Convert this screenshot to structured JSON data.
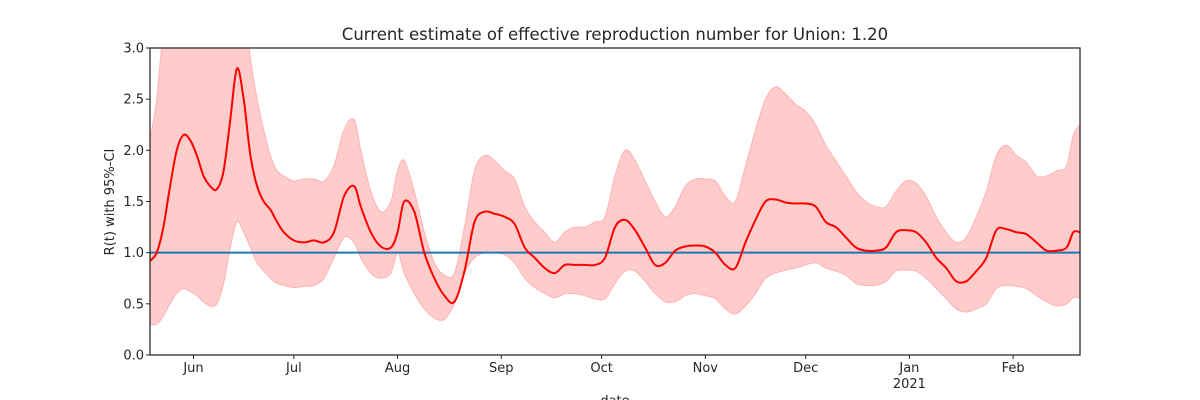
{
  "chart_data": {
    "type": "line",
    "title": "Current estimate of effective reproduction number for Union: 1.20",
    "xlabel": "date",
    "ylabel": "R(t) with 95%-CI",
    "ylim": [
      0,
      3
    ],
    "xlim": [
      "2020-05-19",
      "2021-02-21"
    ],
    "y_ticks": [
      "0.0",
      "0.5",
      "1.0",
      "1.5",
      "2.0",
      "2.5",
      "3.0"
    ],
    "y_tick_values": [
      0,
      0.5,
      1.0,
      1.5,
      2.0,
      2.5,
      3.0
    ],
    "x_ticks": [
      {
        "date": "2020-06-01",
        "label": "Jun",
        "sublabel": ""
      },
      {
        "date": "2020-07-01",
        "label": "Jul",
        "sublabel": ""
      },
      {
        "date": "2020-08-01",
        "label": "Aug",
        "sublabel": ""
      },
      {
        "date": "2020-09-01",
        "label": "Sep",
        "sublabel": ""
      },
      {
        "date": "2020-10-01",
        "label": "Oct",
        "sublabel": ""
      },
      {
        "date": "2020-11-01",
        "label": "Nov",
        "sublabel": ""
      },
      {
        "date": "2020-12-01",
        "label": "Dec",
        "sublabel": ""
      },
      {
        "date": "2021-01-01",
        "label": "Jan",
        "sublabel": "2021"
      },
      {
        "date": "2021-02-01",
        "label": "Feb",
        "sublabel": ""
      }
    ],
    "reference_line": {
      "y": 1.0,
      "color": "#1f77b4"
    },
    "grid": false,
    "colors": {
      "line": "#ff0000",
      "band": "#ffcccc",
      "band_edge": "#ffb3b3",
      "axes": "#262626"
    },
    "series": [
      {
        "type": "line",
        "x": [
          "2020-05-19",
          "2020-05-21",
          "2020-05-23",
          "2020-05-25",
          "2020-05-27",
          "2020-05-29",
          "2020-05-31",
          "2020-06-02",
          "2020-06-04",
          "2020-06-06",
          "2020-06-08",
          "2020-06-10",
          "2020-06-12",
          "2020-06-14",
          "2020-06-16",
          "2020-06-18",
          "2020-06-20",
          "2020-06-22",
          "2020-06-24",
          "2020-06-26",
          "2020-06-28",
          "2020-07-01",
          "2020-07-04",
          "2020-07-07",
          "2020-07-10",
          "2020-07-13",
          "2020-07-16",
          "2020-07-19",
          "2020-07-21",
          "2020-07-24",
          "2020-07-27",
          "2020-07-30",
          "2020-08-01",
          "2020-08-03",
          "2020-08-06",
          "2020-08-09",
          "2020-08-12",
          "2020-08-15",
          "2020-08-18",
          "2020-08-21",
          "2020-08-24",
          "2020-08-27",
          "2020-08-30",
          "2020-09-02",
          "2020-09-05",
          "2020-09-08",
          "2020-09-11",
          "2020-09-14",
          "2020-09-17",
          "2020-09-20",
          "2020-09-23",
          "2020-09-26",
          "2020-09-29",
          "2020-10-02",
          "2020-10-05",
          "2020-10-08",
          "2020-10-11",
          "2020-10-14",
          "2020-10-17",
          "2020-10-20",
          "2020-10-23",
          "2020-10-26",
          "2020-10-29",
          "2020-11-01",
          "2020-11-04",
          "2020-11-07",
          "2020-11-10",
          "2020-11-13",
          "2020-11-16",
          "2020-11-19",
          "2020-11-22",
          "2020-11-25",
          "2020-11-28",
          "2020-12-01",
          "2020-12-04",
          "2020-12-07",
          "2020-12-10",
          "2020-12-13",
          "2020-12-16",
          "2020-12-19",
          "2020-12-22",
          "2020-12-25",
          "2020-12-28",
          "2020-12-31",
          "2021-01-03",
          "2021-01-06",
          "2021-01-09",
          "2021-01-12",
          "2021-01-15",
          "2021-01-18",
          "2021-01-21",
          "2021-01-24",
          "2021-01-27",
          "2021-01-30",
          "2021-02-02",
          "2021-02-05",
          "2021-02-08",
          "2021-02-11",
          "2021-02-14",
          "2021-02-17",
          "2021-02-19",
          "2021-02-21"
        ],
        "y": [
          0.92,
          1.0,
          1.25,
          1.65,
          2.0,
          2.15,
          2.1,
          1.95,
          1.75,
          1.65,
          1.62,
          1.8,
          2.3,
          2.8,
          2.5,
          1.95,
          1.65,
          1.5,
          1.42,
          1.3,
          1.2,
          1.12,
          1.1,
          1.12,
          1.1,
          1.2,
          1.55,
          1.65,
          1.45,
          1.2,
          1.06,
          1.05,
          1.2,
          1.5,
          1.4,
          1.0,
          0.75,
          0.58,
          0.52,
          0.82,
          1.3,
          1.4,
          1.38,
          1.35,
          1.28,
          1.05,
          0.95,
          0.85,
          0.8,
          0.88,
          0.88,
          0.88,
          0.88,
          0.95,
          1.25,
          1.32,
          1.22,
          1.05,
          0.88,
          0.9,
          1.02,
          1.06,
          1.07,
          1.06,
          1.0,
          0.88,
          0.85,
          1.1,
          1.32,
          1.5,
          1.52,
          1.49,
          1.48,
          1.48,
          1.45,
          1.3,
          1.25,
          1.15,
          1.05,
          1.02,
          1.02,
          1.05,
          1.2,
          1.22,
          1.2,
          1.1,
          0.95,
          0.85,
          0.72,
          0.72,
          0.82,
          0.95,
          1.22,
          1.23,
          1.2,
          1.18,
          1.1,
          1.02,
          1.02,
          1.05,
          1.2,
          1.2
        ]
      },
      {
        "type": "band",
        "x": [
          "2020-05-19",
          "2020-05-21",
          "2020-05-23",
          "2020-05-25",
          "2020-05-27",
          "2020-05-29",
          "2020-05-31",
          "2020-06-02",
          "2020-06-04",
          "2020-06-06",
          "2020-06-08",
          "2020-06-10",
          "2020-06-12",
          "2020-06-14",
          "2020-06-16",
          "2020-06-18",
          "2020-06-20",
          "2020-06-22",
          "2020-06-24",
          "2020-06-26",
          "2020-06-28",
          "2020-07-01",
          "2020-07-04",
          "2020-07-07",
          "2020-07-10",
          "2020-07-13",
          "2020-07-16",
          "2020-07-19",
          "2020-07-21",
          "2020-07-24",
          "2020-07-27",
          "2020-07-30",
          "2020-08-01",
          "2020-08-03",
          "2020-08-06",
          "2020-08-09",
          "2020-08-12",
          "2020-08-15",
          "2020-08-18",
          "2020-08-21",
          "2020-08-24",
          "2020-08-27",
          "2020-08-30",
          "2020-09-02",
          "2020-09-05",
          "2020-09-08",
          "2020-09-11",
          "2020-09-14",
          "2020-09-17",
          "2020-09-20",
          "2020-09-23",
          "2020-09-26",
          "2020-09-29",
          "2020-10-02",
          "2020-10-05",
          "2020-10-08",
          "2020-10-11",
          "2020-10-14",
          "2020-10-17",
          "2020-10-20",
          "2020-10-23",
          "2020-10-26",
          "2020-10-29",
          "2020-11-01",
          "2020-11-04",
          "2020-11-07",
          "2020-11-10",
          "2020-11-13",
          "2020-11-16",
          "2020-11-19",
          "2020-11-22",
          "2020-11-25",
          "2020-11-28",
          "2020-12-01",
          "2020-12-04",
          "2020-12-07",
          "2020-12-10",
          "2020-12-13",
          "2020-12-16",
          "2020-12-19",
          "2020-12-22",
          "2020-12-25",
          "2020-12-28",
          "2020-12-31",
          "2021-01-03",
          "2021-01-06",
          "2021-01-09",
          "2021-01-12",
          "2021-01-15",
          "2021-01-18",
          "2021-01-21",
          "2021-01-24",
          "2021-01-27",
          "2021-01-30",
          "2021-02-02",
          "2021-02-05",
          "2021-02-08",
          "2021-02-11",
          "2021-02-14",
          "2021-02-17",
          "2021-02-19",
          "2021-02-21"
        ],
        "lower": [
          0.3,
          0.3,
          0.38,
          0.5,
          0.6,
          0.65,
          0.62,
          0.58,
          0.52,
          0.48,
          0.5,
          0.7,
          1.05,
          1.3,
          1.2,
          1.05,
          0.9,
          0.82,
          0.75,
          0.7,
          0.68,
          0.66,
          0.67,
          0.68,
          0.75,
          0.95,
          1.15,
          1.1,
          0.95,
          0.8,
          0.75,
          0.8,
          1.0,
          0.8,
          0.6,
          0.45,
          0.36,
          0.35,
          0.5,
          0.8,
          0.95,
          1.0,
          1.0,
          0.98,
          0.9,
          0.75,
          0.66,
          0.6,
          0.56,
          0.6,
          0.6,
          0.58,
          0.55,
          0.55,
          0.7,
          0.82,
          0.82,
          0.72,
          0.6,
          0.52,
          0.52,
          0.58,
          0.6,
          0.58,
          0.55,
          0.45,
          0.4,
          0.48,
          0.6,
          0.75,
          0.8,
          0.83,
          0.85,
          0.88,
          0.9,
          0.85,
          0.82,
          0.78,
          0.7,
          0.68,
          0.68,
          0.72,
          0.82,
          0.83,
          0.82,
          0.75,
          0.65,
          0.55,
          0.45,
          0.42,
          0.45,
          0.5,
          0.65,
          0.68,
          0.67,
          0.65,
          0.58,
          0.52,
          0.48,
          0.5,
          0.56,
          0.56
        ],
        "upper": [
          2.1,
          2.5,
          3.2,
          3.6,
          3.8,
          3.8,
          3.6,
          3.5,
          3.4,
          3.3,
          3.25,
          3.3,
          3.5,
          3.6,
          3.4,
          2.9,
          2.5,
          2.2,
          1.95,
          1.8,
          1.75,
          1.7,
          1.72,
          1.72,
          1.7,
          1.85,
          2.2,
          2.3,
          2.0,
          1.6,
          1.4,
          1.5,
          1.8,
          1.9,
          1.6,
          1.2,
          0.9,
          0.78,
          0.8,
          1.25,
          1.8,
          1.95,
          1.9,
          1.8,
          1.72,
          1.45,
          1.3,
          1.2,
          1.1,
          1.2,
          1.25,
          1.25,
          1.3,
          1.35,
          1.75,
          2.0,
          1.9,
          1.7,
          1.5,
          1.35,
          1.45,
          1.65,
          1.72,
          1.72,
          1.7,
          1.55,
          1.5,
          1.85,
          2.2,
          2.5,
          2.62,
          2.55,
          2.45,
          2.38,
          2.25,
          2.05,
          1.9,
          1.75,
          1.6,
          1.5,
          1.45,
          1.45,
          1.6,
          1.7,
          1.68,
          1.55,
          1.35,
          1.2,
          1.1,
          1.15,
          1.35,
          1.6,
          1.95,
          2.05,
          1.95,
          1.88,
          1.75,
          1.75,
          1.8,
          1.85,
          2.15,
          2.25
        ]
      }
    ]
  }
}
